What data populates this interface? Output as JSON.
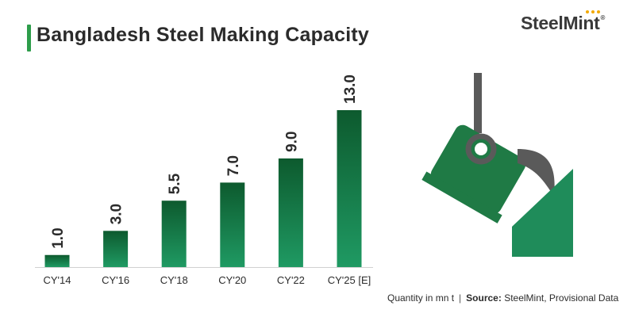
{
  "header": {
    "title": "Bangladesh Steel Making Capacity",
    "accent_color": "#2e9d4b"
  },
  "logo": {
    "text": "SteelMint",
    "registered_mark": "®",
    "dot_colors": [
      "#f2a900",
      "#f2a900",
      "#f2a900"
    ]
  },
  "footer": {
    "unit_note": "Quantity in mn t",
    "separator": "|",
    "source_label": "Source:",
    "source_text": "SteelMint, Provisional Data"
  },
  "illustration": {
    "icon": "ladle-pouring-icon",
    "colors": {
      "ladle": "#1f7a45",
      "hook": "#5a5a5a",
      "pour": "#5a5a5a",
      "mold": "#1f8c5a"
    }
  },
  "chart_data": {
    "type": "bar",
    "title": "Bangladesh Steel Making Capacity",
    "categories": [
      "CY'14",
      "CY'16",
      "CY'18",
      "CY'20",
      "CY'22",
      "CY'25 [E]"
    ],
    "values": [
      1.0,
      3.0,
      5.5,
      7.0,
      9.0,
      13.0
    ],
    "value_labels": [
      "1.0",
      "3.0",
      "5.5",
      "7.0",
      "9.0",
      "13.0"
    ],
    "xlabel": "",
    "ylabel": "",
    "ylim": [
      0,
      13
    ],
    "grid": false,
    "legend": "none",
    "bar_gradient": [
      "#0d5a2e",
      "#1f9a63"
    ]
  }
}
